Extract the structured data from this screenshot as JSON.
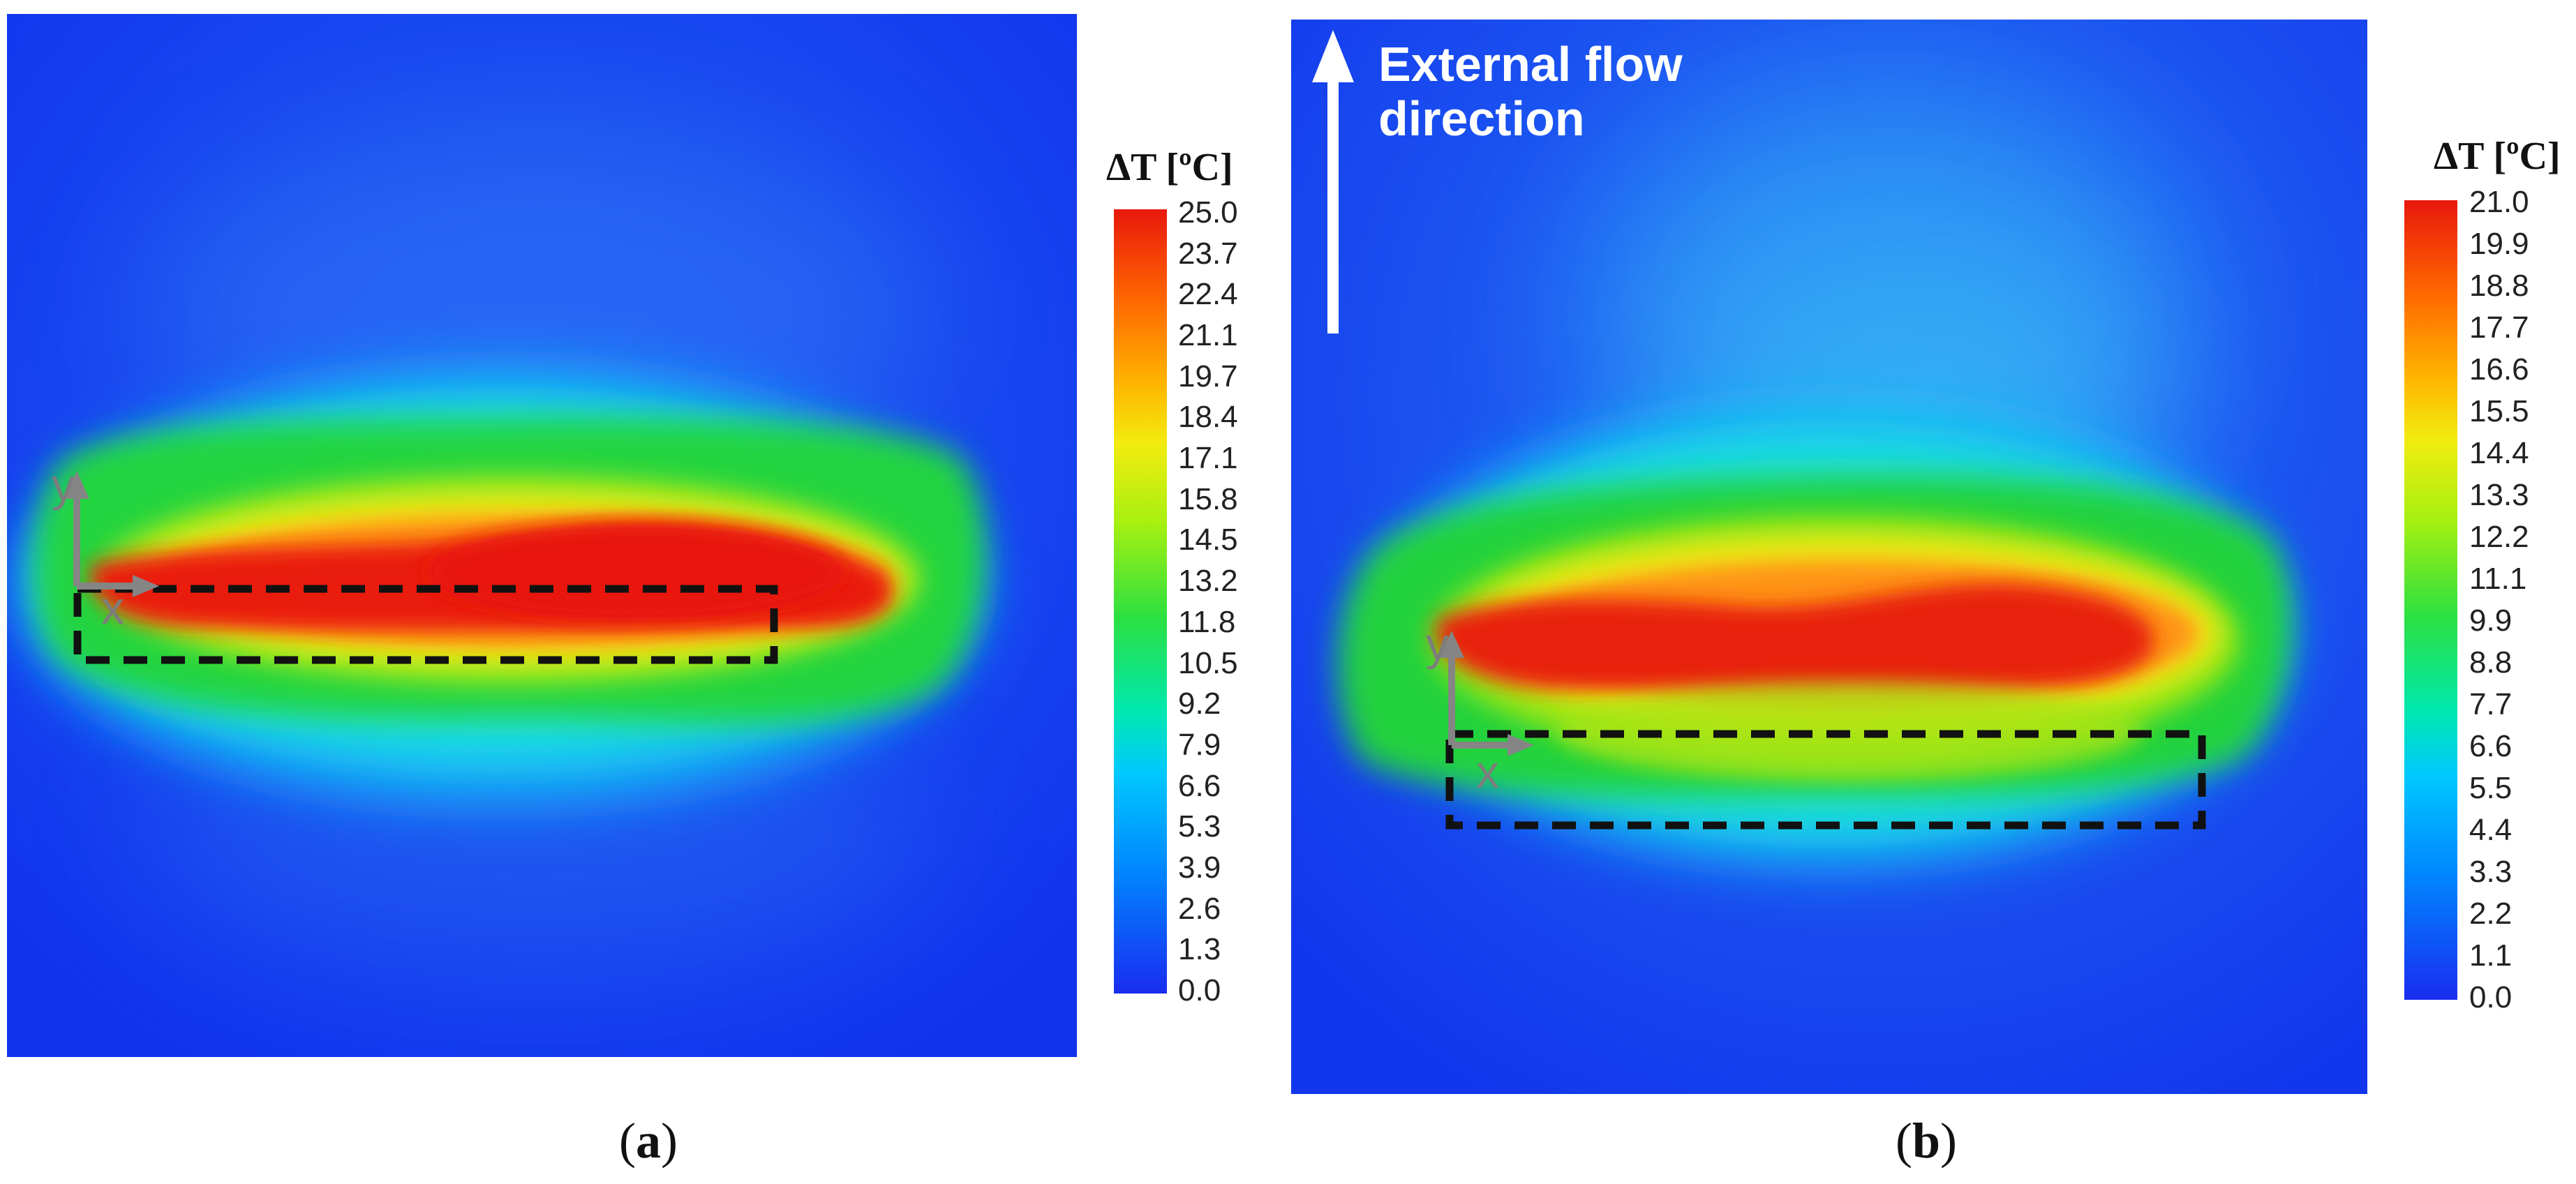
{
  "figure": {
    "panel_a": {
      "caption_open": "(",
      "caption_letter": "a",
      "caption_close": ")",
      "colorbar": {
        "title": "ΔT [ºC]",
        "ticks": [
          "25.0",
          "23.7",
          "22.4",
          "21.1",
          "19.7",
          "18.4",
          "17.1",
          "15.8",
          "14.5",
          "13.2",
          "11.8",
          "10.5",
          "9.2",
          "7.9",
          "6.6",
          "5.3",
          "3.9",
          "2.6",
          "1.3",
          "0.0"
        ]
      },
      "axis_x": "x",
      "axis_y": "y"
    },
    "panel_b": {
      "caption_open": "(",
      "caption_letter": "b",
      "caption_close": ")",
      "flow_label_line1": "External flow",
      "flow_label_line2": "direction",
      "colorbar": {
        "title": "ΔT [ºC]",
        "ticks": [
          "21.0",
          "19.9",
          "18.8",
          "17.7",
          "16.6",
          "15.5",
          "14.4",
          "13.3",
          "12.2",
          "11.1",
          "9.9",
          "8.8",
          "7.7",
          "6.6",
          "5.5",
          "4.4",
          "3.3",
          "2.2",
          "1.1",
          "0.0"
        ]
      },
      "axis_x": "x",
      "axis_y": "y"
    }
  },
  "colors": {
    "background_blue": "#1a3cf0",
    "hot_red": "#e81c10",
    "colormap": [
      "#0010f0",
      "#0066ff",
      "#00ccff",
      "#00e8a0",
      "#00e040",
      "#a8f000",
      "#ffe800",
      "#ff9000",
      "#e81000"
    ]
  }
}
